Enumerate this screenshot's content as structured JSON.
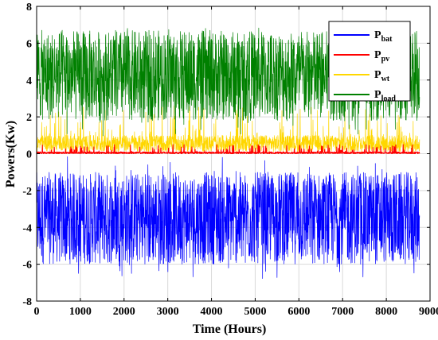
{
  "chart_data": {
    "type": "line",
    "title": "",
    "xlabel": "Time (Hours)",
    "ylabel": "Powers(Kw)",
    "xlim": [
      0,
      9000
    ],
    "ylim": [
      -8,
      8
    ],
    "xticks": [
      0,
      1000,
      2000,
      3000,
      4000,
      5000,
      6000,
      7000,
      8000,
      9000
    ],
    "yticks": [
      -8,
      -6,
      -4,
      -2,
      0,
      2,
      4,
      6,
      8
    ],
    "x_extent": [
      0,
      8760
    ],
    "grid": true,
    "legend_position": "top-right",
    "series": [
      {
        "name_main": "P",
        "name_sub": "bat",
        "color": "#0000ff",
        "approx_range": [
          -6.8,
          -0.1
        ],
        "typical_range": [
          -6,
          -1
        ]
      },
      {
        "name_main": "P",
        "name_sub": "pv",
        "color": "#ff0000",
        "approx_range": [
          0,
          0.5
        ],
        "typical_range": [
          0,
          0.1
        ]
      },
      {
        "name_main": "P",
        "name_sub": "wt",
        "color": "#ffd700",
        "approx_range": [
          0,
          2.6
        ],
        "typical_range": [
          0.1,
          1.0
        ]
      },
      {
        "name_main": "P",
        "name_sub": "load",
        "color": "#008000",
        "approx_range": [
          0.9,
          6.9
        ],
        "typical_range": [
          1.8,
          6.7
        ]
      }
    ]
  }
}
